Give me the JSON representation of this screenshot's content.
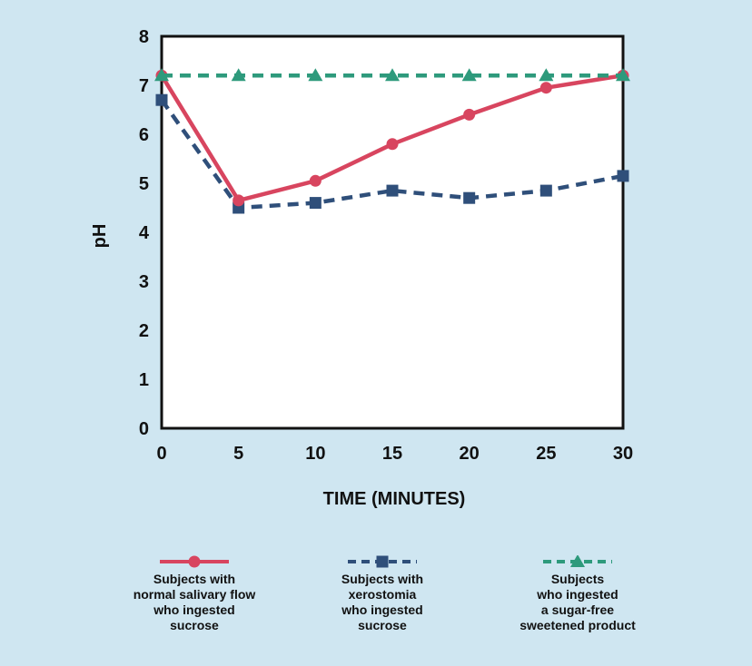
{
  "chart_data": {
    "type": "line",
    "title": "",
    "xlabel": "TIME (MINUTES)",
    "ylabel": "pH",
    "x": [
      0,
      5,
      10,
      15,
      20,
      25,
      30
    ],
    "xlim": [
      0,
      30
    ],
    "ylim": [
      0,
      8
    ],
    "xticks": [
      "0",
      "5",
      "10",
      "15",
      "20",
      "25",
      "30"
    ],
    "yticks": [
      "0",
      "1",
      "2",
      "3",
      "4",
      "5",
      "6",
      "7",
      "8"
    ],
    "grid": false,
    "legend_position": "bottom",
    "series": [
      {
        "name": "Subjects with normal salivary flow who ingested sucrose",
        "legend_lines": "Subjects with\nnormal salivary flow\nwho ingested\nsucrose",
        "values": [
          7.2,
          4.65,
          5.05,
          5.8,
          6.4,
          6.95,
          7.2
        ],
        "color": "#d8455f",
        "marker": "circle",
        "dash": "solid"
      },
      {
        "name": "Subjects with xerostomia who ingested sucrose",
        "legend_lines": "Subjects with\nxerostomia\nwho ingested\nsucrose",
        "values": [
          6.7,
          4.5,
          4.6,
          4.85,
          4.7,
          4.85,
          5.15
        ],
        "color": "#2f4f7a",
        "marker": "square",
        "dash": "dashed"
      },
      {
        "name": "Subjects who ingested a sugar-free sweetened product",
        "legend_lines": "Subjects\nwho ingested\na sugar-free\nsweetened product",
        "values": [
          7.2,
          7.2,
          7.2,
          7.2,
          7.2,
          7.2,
          7.2
        ],
        "color": "#2e9a7c",
        "marker": "triangle",
        "dash": "dashed"
      }
    ]
  }
}
